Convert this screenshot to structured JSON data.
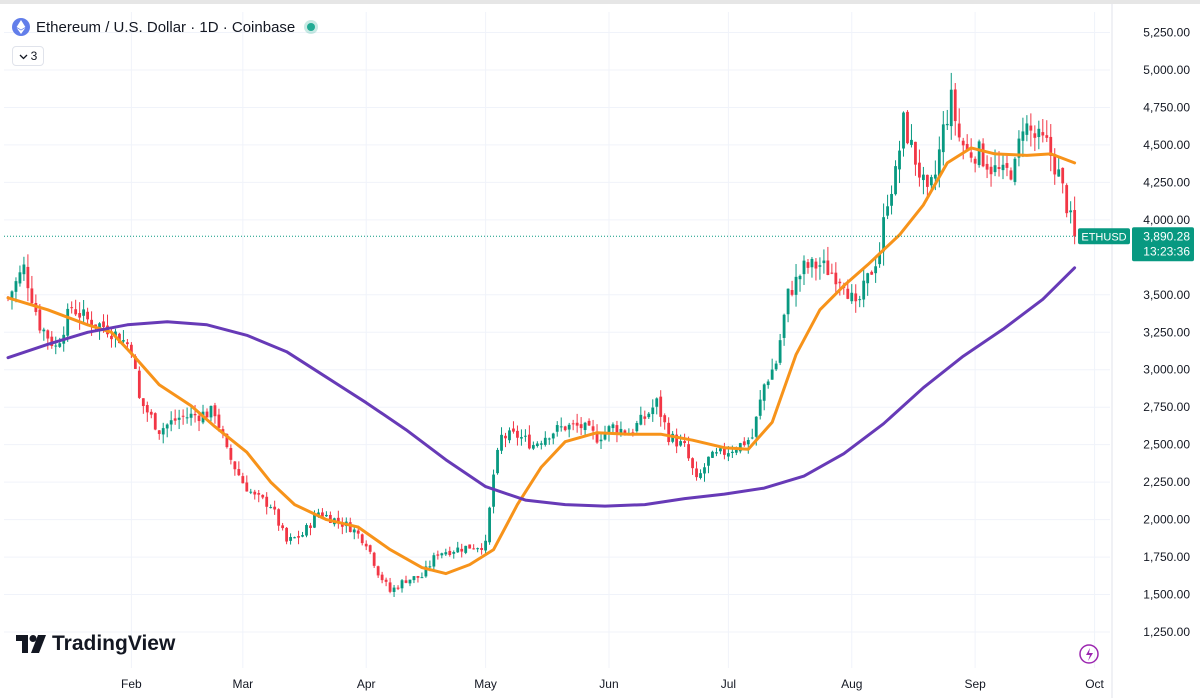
{
  "header": {
    "title": "Ethereum / U.S. Dollar · 1D · Coinbase",
    "indicator_count": "3"
  },
  "branding": {
    "logo_text": "TradingView"
  },
  "price_label": {
    "symbol": "ETHUSD",
    "price": "3,890.28",
    "countdown": "13:23:36",
    "color": "#089981"
  },
  "colors": {
    "up": "#089981",
    "down": "#f23645",
    "ma_fast": "#f7931a",
    "ma_slow": "#673ab7",
    "grid": "#f0f3fa"
  },
  "chart_data": {
    "type": "candlestick",
    "y_axis": {
      "ticks": [
        1250,
        1500,
        1750,
        2000,
        2250,
        2500,
        2750,
        3000,
        3250,
        3500,
        4000,
        4250,
        4500,
        4750,
        5000,
        5250
      ],
      "tick_labels": [
        "1,250.00",
        "1,500.00",
        "1,750.00",
        "2,000.00",
        "2,250.00",
        "2,500.00",
        "2,750.00",
        "3,000.00",
        "3,250.00",
        "3,500.00",
        "4,000.00",
        "4,250.00",
        "4,500.00",
        "4,750.00",
        "5,000.00",
        "5,250.00"
      ],
      "range": [
        1050,
        5350
      ]
    },
    "x_axis": {
      "tick_labels": [
        "Feb",
        "Mar",
        "Apr",
        "May",
        "Jun",
        "Jul",
        "Aug",
        "Sep",
        "Oct"
      ],
      "tick_day_index": [
        31,
        59,
        90,
        120,
        151,
        181,
        212,
        243,
        273
      ],
      "total_days": 274
    },
    "last_price": 3890.28,
    "close_anchors": [
      [
        0,
        3480
      ],
      [
        4,
        3680
      ],
      [
        8,
        3300
      ],
      [
        12,
        3150
      ],
      [
        16,
        3420
      ],
      [
        20,
        3330
      ],
      [
        25,
        3280
      ],
      [
        31,
        3150
      ],
      [
        33,
        2800
      ],
      [
        38,
        2600
      ],
      [
        43,
        2680
      ],
      [
        48,
        2700
      ],
      [
        52,
        2720
      ],
      [
        55,
        2450
      ],
      [
        59,
        2250
      ],
      [
        62,
        2150
      ],
      [
        66,
        2100
      ],
      [
        70,
        1850
      ],
      [
        74,
        1900
      ],
      [
        78,
        2050
      ],
      [
        82,
        2000
      ],
      [
        86,
        1950
      ],
      [
        90,
        1850
      ],
      [
        93,
        1650
      ],
      [
        96,
        1520
      ],
      [
        100,
        1600
      ],
      [
        104,
        1620
      ],
      [
        108,
        1780
      ],
      [
        112,
        1800
      ],
      [
        116,
        1820
      ],
      [
        120,
        1830
      ],
      [
        122,
        2300
      ],
      [
        124,
        2550
      ],
      [
        128,
        2560
      ],
      [
        132,
        2500
      ],
      [
        136,
        2580
      ],
      [
        140,
        2620
      ],
      [
        144,
        2620
      ],
      [
        148,
        2550
      ],
      [
        152,
        2620
      ],
      [
        156,
        2580
      ],
      [
        160,
        2680
      ],
      [
        163,
        2780
      ],
      [
        166,
        2560
      ],
      [
        170,
        2480
      ],
      [
        173,
        2250
      ],
      [
        176,
        2400
      ],
      [
        180,
        2450
      ],
      [
        184,
        2500
      ],
      [
        187,
        2550
      ],
      [
        190,
        2900
      ],
      [
        193,
        3050
      ],
      [
        196,
        3500
      ],
      [
        200,
        3680
      ],
      [
        204,
        3700
      ],
      [
        207,
        3650
      ],
      [
        210,
        3600
      ],
      [
        213,
        3400
      ],
      [
        216,
        3600
      ],
      [
        219,
        3800
      ],
      [
        221,
        4150
      ],
      [
        223,
        4300
      ],
      [
        225,
        4650
      ],
      [
        228,
        4400
      ],
      [
        231,
        4150
      ],
      [
        233,
        4300
      ],
      [
        235,
        4600
      ],
      [
        237,
        4800
      ],
      [
        239,
        4550
      ],
      [
        241,
        4450
      ],
      [
        244,
        4450
      ],
      [
        247,
        4350
      ],
      [
        250,
        4300
      ],
      [
        253,
        4350
      ],
      [
        255,
        4650
      ],
      [
        258,
        4550
      ],
      [
        261,
        4500
      ],
      [
        264,
        4300
      ],
      [
        266,
        4100
      ],
      [
        268,
        3890
      ]
    ],
    "series": [
      {
        "name": "",
        "kind": "moving_average_fast",
        "points": [
          [
            0,
            3480
          ],
          [
            10,
            3400
          ],
          [
            20,
            3300
          ],
          [
            26,
            3250
          ],
          [
            32,
            3080
          ],
          [
            38,
            2900
          ],
          [
            46,
            2760
          ],
          [
            52,
            2620
          ],
          [
            60,
            2450
          ],
          [
            66,
            2250
          ],
          [
            72,
            2100
          ],
          [
            80,
            2000
          ],
          [
            88,
            1950
          ],
          [
            96,
            1800
          ],
          [
            104,
            1680
          ],
          [
            110,
            1640
          ],
          [
            116,
            1700
          ],
          [
            122,
            1800
          ],
          [
            128,
            2100
          ],
          [
            134,
            2350
          ],
          [
            140,
            2520
          ],
          [
            148,
            2580
          ],
          [
            156,
            2570
          ],
          [
            164,
            2570
          ],
          [
            172,
            2530
          ],
          [
            180,
            2480
          ],
          [
            186,
            2470
          ],
          [
            192,
            2650
          ],
          [
            198,
            3100
          ],
          [
            204,
            3400
          ],
          [
            210,
            3560
          ],
          [
            216,
            3700
          ],
          [
            224,
            3900
          ],
          [
            230,
            4100
          ],
          [
            236,
            4380
          ],
          [
            242,
            4480
          ],
          [
            248,
            4440
          ],
          [
            256,
            4430
          ],
          [
            262,
            4440
          ],
          [
            268,
            4380
          ]
        ]
      },
      {
        "name": "",
        "kind": "moving_average_slow",
        "points": [
          [
            0,
            3080
          ],
          [
            10,
            3170
          ],
          [
            20,
            3250
          ],
          [
            30,
            3300
          ],
          [
            40,
            3320
          ],
          [
            50,
            3300
          ],
          [
            60,
            3230
          ],
          [
            70,
            3120
          ],
          [
            80,
            2950
          ],
          [
            90,
            2780
          ],
          [
            100,
            2600
          ],
          [
            110,
            2400
          ],
          [
            120,
            2220
          ],
          [
            130,
            2130
          ],
          [
            140,
            2100
          ],
          [
            150,
            2090
          ],
          [
            160,
            2100
          ],
          [
            170,
            2140
          ],
          [
            180,
            2170
          ],
          [
            190,
            2210
          ],
          [
            200,
            2290
          ],
          [
            210,
            2440
          ],
          [
            220,
            2640
          ],
          [
            230,
            2880
          ],
          [
            240,
            3090
          ],
          [
            250,
            3270
          ],
          [
            260,
            3470
          ],
          [
            268,
            3680
          ]
        ]
      }
    ],
    "grid": true
  }
}
